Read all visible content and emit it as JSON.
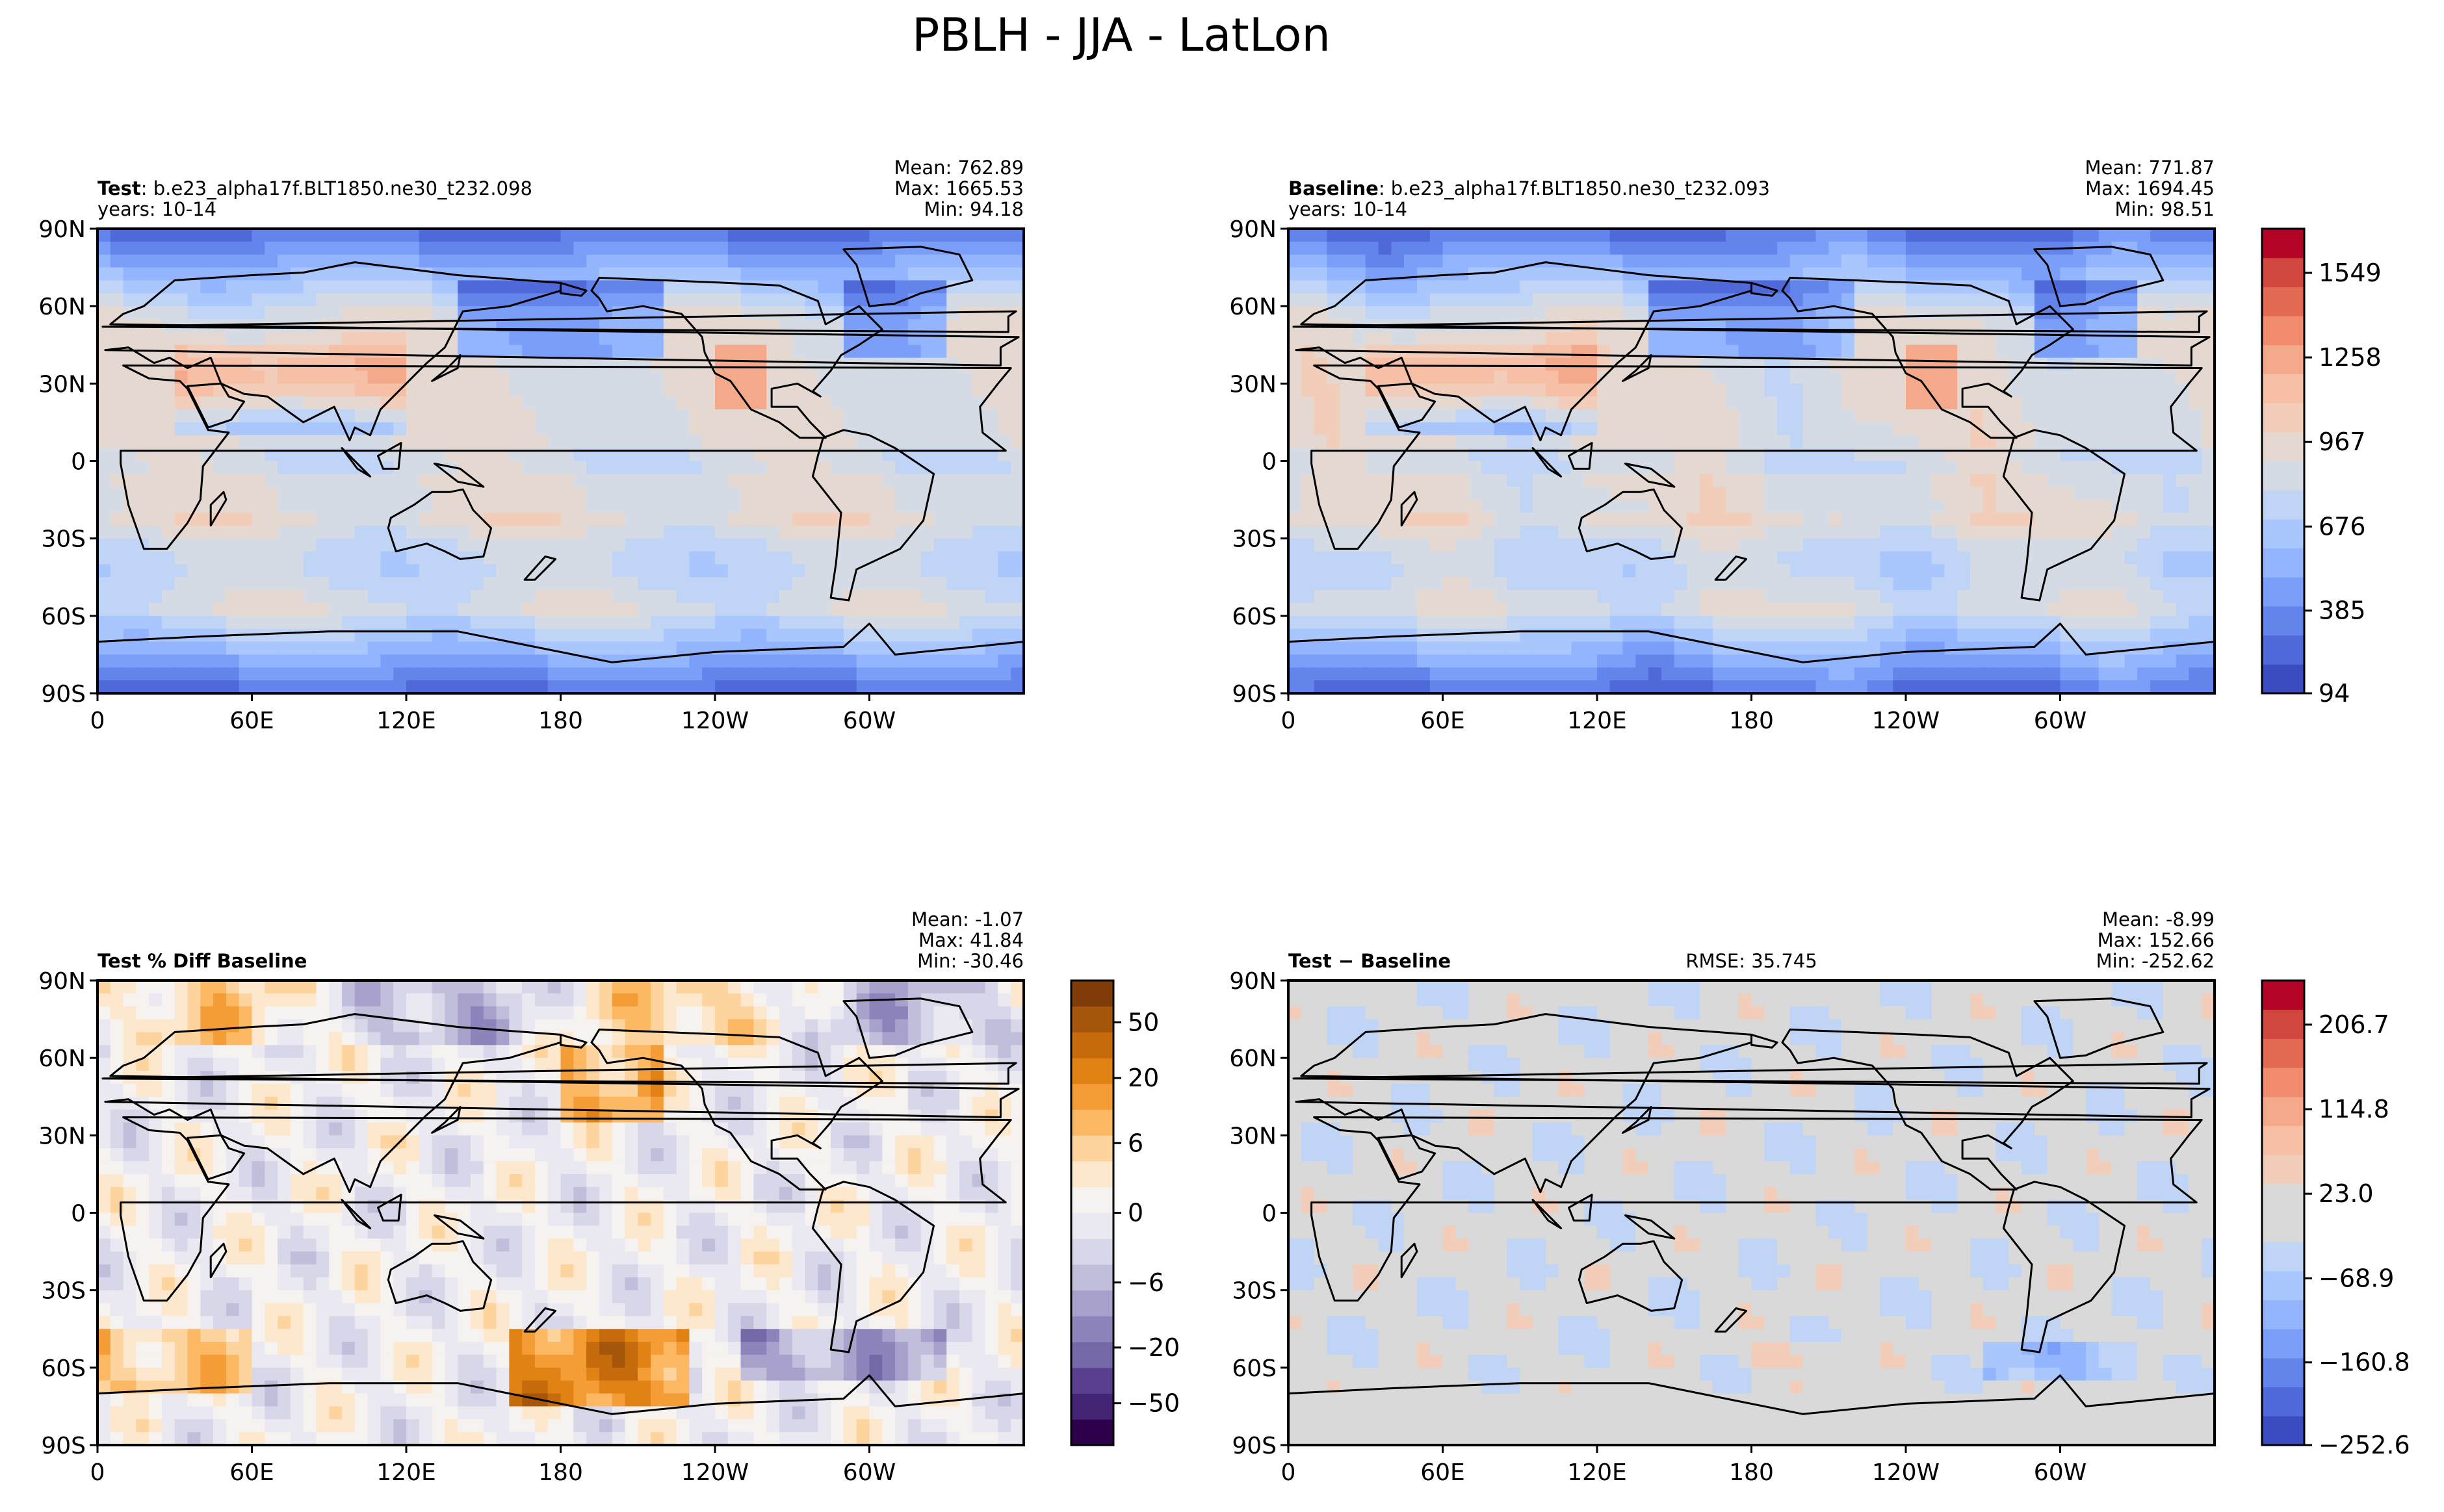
{
  "title": "PBLH - JJA - LatLon",
  "lat_ticks": [
    "90N",
    "60N",
    "30N",
    "0",
    "30S",
    "60S",
    "90S"
  ],
  "lon_ticks": [
    "0",
    "60E",
    "120E",
    "180",
    "120W",
    "60W"
  ],
  "panels": [
    {
      "id": "test",
      "label_bold": "Test",
      "label_rest": ": b.e23_alpha17f.BLT1850.ne30_t232.098",
      "years": "years: 10-14",
      "stats": [
        "Mean: 762.89",
        "Max: 1665.53",
        "Min: 94.18"
      ],
      "center": "",
      "field": "pblh_test"
    },
    {
      "id": "baseline",
      "label_bold": "Baseline",
      "label_rest": ": b.e23_alpha17f.BLT1850.ne30_t232.093",
      "years": "years: 10-14",
      "stats": [
        "Mean: 771.87",
        "Max: 1694.45",
        "Min: 98.51"
      ],
      "center": "",
      "field": "pblh_base"
    },
    {
      "id": "pctdiff",
      "label_bold": "Test % Diff Baseline",
      "label_rest": "",
      "years": "",
      "stats": [
        "Mean: -1.07",
        "Max: 41.84",
        "Min: -30.46"
      ],
      "center": "",
      "field": "pct_diff"
    },
    {
      "id": "diff",
      "label_bold": "Test − Baseline",
      "label_rest": "",
      "years": "",
      "stats": [
        "Mean: -8.99",
        "Max: 152.66",
        "Min: -252.62"
      ],
      "center": "RMSE: 35.745",
      "field": "abs_diff"
    }
  ],
  "colorbars": [
    {
      "id": "cb-pblh",
      "ticks": [
        "1549",
        "1258",
        "967",
        "676",
        "385",
        "94"
      ],
      "colors": [
        "#3b4cc0",
        "#4f69d9",
        "#6384eb",
        "#7b9ff9",
        "#93b5fe",
        "#aac7fd",
        "#c0d4f5",
        "#d5dbe5",
        "#e5d8d1",
        "#f1cdba",
        "#f6bfa6",
        "#f5a98b",
        "#f08b6e",
        "#e26952",
        "#d0473d",
        "#b40426"
      ]
    },
    {
      "id": "cb-pct",
      "ticks": [
        "50",
        "20",
        "6",
        "0",
        "−6",
        "−20",
        "−50"
      ],
      "colors": [
        "#2d004b",
        "#442474",
        "#5a3f90",
        "#7468a8",
        "#8d84bb",
        "#a8a1cc",
        "#c1bedb",
        "#d8d7e9",
        "#eae9f1",
        "#f5f2ef",
        "#fde8cd",
        "#fdd49e",
        "#fdb863",
        "#f49c35",
        "#e08214",
        "#c66b0b",
        "#a6560b",
        "#7f3b08"
      ]
    },
    {
      "id": "cb-diff",
      "ticks": [
        "206.7",
        "114.8",
        "23.0",
        "−68.9",
        "−160.8",
        "−252.6"
      ],
      "colors": [
        "#3b4cc0",
        "#4f69d9",
        "#6384eb",
        "#7b9ff9",
        "#93b5fe",
        "#aac7fd",
        "#c0d4f5",
        "#d9d9d9",
        "#d9d9d9",
        "#f1cdba",
        "#f6bfa6",
        "#f5a98b",
        "#f08b6e",
        "#e26952",
        "#d0473d",
        "#b40426"
      ]
    }
  ]
}
